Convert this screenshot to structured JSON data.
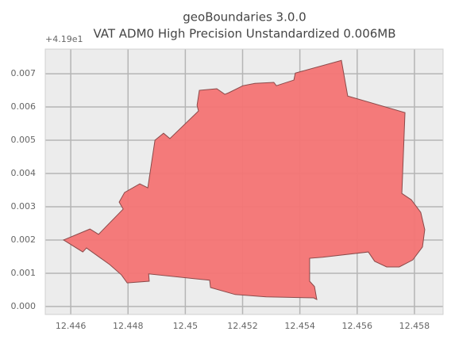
{
  "chart_data": {
    "type": "map",
    "title": "geoBoundaries 3.0.0",
    "subtitle": "VAT ADM0 High Precision Unstandardized 0.006MB",
    "y_offset_text": "+4.19e1",
    "color": "#f47474",
    "edge_color": "#8a4a4a",
    "grid": true,
    "xlim": [
      12.44511,
      12.459
    ],
    "ylim": [
      -0.00024,
      0.00774
    ],
    "xticks": [
      12.446,
      12.448,
      12.45,
      12.452,
      12.454,
      12.456,
      12.458
    ],
    "yticks": [
      {
        "value": 0,
        "label": "0.000"
      },
      0.001,
      0.002,
      0.003,
      0.004,
      0.005,
      0.006,
      0.007
    ],
    "x": [
      12.44575,
      12.44667,
      12.44697,
      12.44783,
      12.44769,
      12.44788,
      12.44841,
      12.44869,
      12.44894,
      12.44924,
      12.44946,
      12.45046,
      12.45041,
      12.45049,
      12.4511,
      12.45138,
      12.45152,
      12.45201,
      12.45243,
      12.45309,
      12.45318,
      12.45379,
      12.45384,
      12.45545,
      12.45567,
      12.45767,
      12.45756,
      12.45789,
      12.45822,
      12.45836,
      12.45828,
      12.45794,
      12.45747,
      12.45703,
      12.45661,
      12.45639,
      12.45479,
      12.45434,
      12.45434,
      12.45451,
      12.45459,
      12.45448,
      12.45282,
      12.45174,
      12.45088,
      12.45085,
      12.44872,
      12.44874,
      12.44797,
      12.44777,
      12.44736,
      12.44655,
      12.44642
    ],
    "y": [
      0.002,
      0.00233,
      0.00217,
      0.00293,
      0.00314,
      0.00343,
      0.00369,
      0.00357,
      0.005,
      0.00521,
      0.00505,
      0.00588,
      0.00605,
      0.0065,
      0.00655,
      0.00638,
      0.00643,
      0.00664,
      0.00671,
      0.00674,
      0.00664,
      0.00681,
      0.00702,
      0.0074,
      0.00633,
      0.00583,
      0.0034,
      0.00321,
      0.00283,
      0.00231,
      0.00179,
      0.0014,
      0.00119,
      0.00119,
      0.00136,
      0.00164,
      0.00148,
      0.00145,
      0.00076,
      0.0006,
      0.00021,
      0.00026,
      0.00029,
      0.00036,
      0.00057,
      0.00079,
      0.00098,
      0.00076,
      0.00071,
      0.00095,
      0.00126,
      0.00176,
      0.00164
    ]
  }
}
